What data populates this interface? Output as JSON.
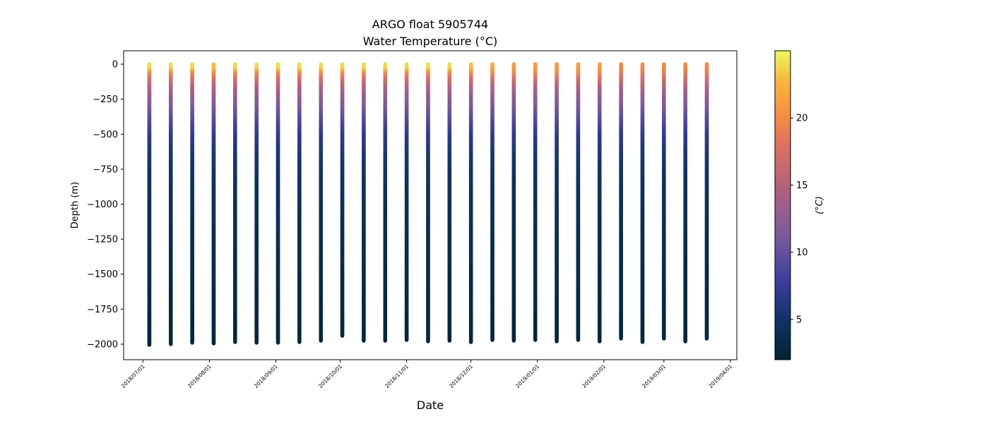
{
  "chart_data": {
    "type": "scatter",
    "title": "ARGO float 5905744",
    "subtitle": "Water Temperature (°C)",
    "xlabel": "Date",
    "ylabel": "Depth (m)",
    "colorbar_label": "(°C)",
    "colormap": "thermal",
    "color_range": [
      2,
      25
    ],
    "colorbar_ticks": [
      5,
      10,
      15,
      20
    ],
    "xlim": [
      "2018-06-22",
      "2019-04-04"
    ],
    "ylim": [
      -2111,
      96
    ],
    "x_ticks": [
      "2018/07/01",
      "2018/08/01",
      "2018/09/01",
      "2018/10/01",
      "2018/11/01",
      "2018/12/01",
      "2019/01/01",
      "2019/02/01",
      "2019/03/01",
      "2019/04/01"
    ],
    "y_ticks": [
      0,
      -250,
      -500,
      -750,
      -1000,
      -1250,
      -1500,
      -1750,
      -2000
    ],
    "grid": false,
    "profiles": {
      "dates": [
        "2018-07-04",
        "2018-07-14",
        "2018-07-24",
        "2018-08-03",
        "2018-08-13",
        "2018-08-23",
        "2018-09-02",
        "2018-09-12",
        "2018-09-22",
        "2018-10-02",
        "2018-10-12",
        "2018-10-22",
        "2018-11-01",
        "2018-11-11",
        "2018-11-21",
        "2018-12-01",
        "2018-12-11",
        "2018-12-21",
        "2018-12-31",
        "2019-01-10",
        "2019-01-20",
        "2019-01-30",
        "2019-02-09",
        "2019-02-19",
        "2019-03-01",
        "2019-03-11",
        "2019-03-21"
      ],
      "max_depth": [
        -2005,
        -2000,
        -1990,
        -1995,
        -1985,
        -1990,
        -1990,
        -1985,
        -1975,
        -1940,
        -1975,
        -1975,
        -1970,
        -1980,
        -1975,
        -1985,
        -1970,
        -1975,
        -1970,
        -1980,
        -1970,
        -1980,
        -1960,
        -1985,
        -1960,
        -1980,
        -1960
      ],
      "surface_temp": [
        24,
        24,
        24,
        23,
        24,
        24,
        24,
        24,
        24,
        24,
        24,
        24,
        24,
        24,
        24,
        23,
        22,
        21,
        21,
        21,
        21,
        21,
        20,
        20,
        20,
        20,
        20
      ]
    },
    "typical_profile": {
      "depth": [
        -50,
        -150,
        -250,
        -400,
        -500,
        -650,
        -800,
        -1000,
        -1500,
        -2000
      ],
      "temp": [
        20,
        15,
        12,
        9,
        7,
        5.5,
        4.8,
        4.2,
        3.2,
        2.5
      ]
    }
  }
}
